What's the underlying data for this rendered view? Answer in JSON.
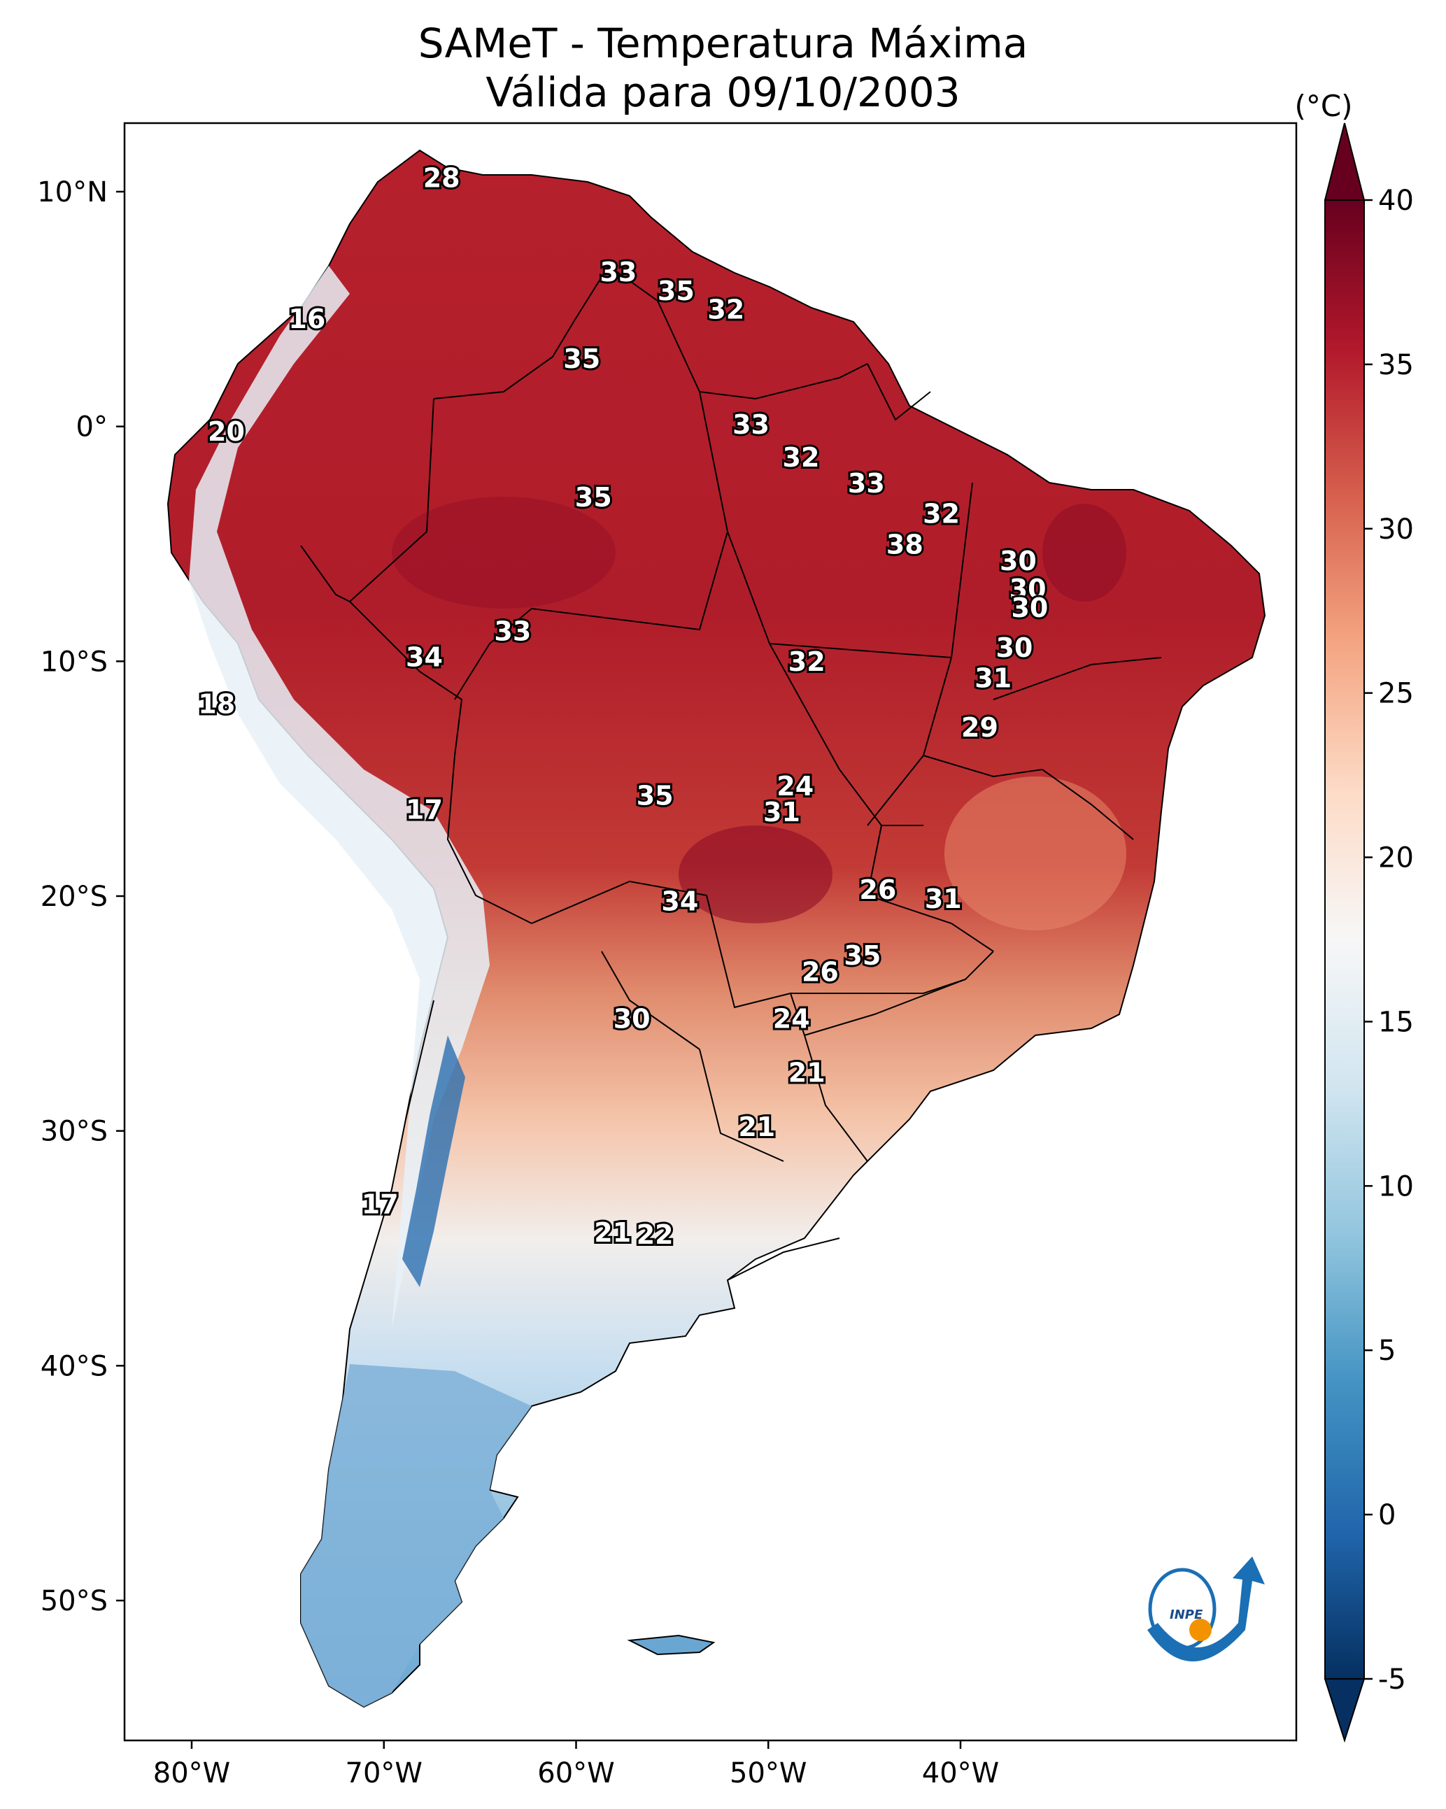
{
  "title": {
    "line1": "SAMeT - Temperatura Máxima",
    "line2": "Válida para 09/10/2003"
  },
  "map": {
    "lon_ticks": [
      "80°W",
      "70°W",
      "60°W",
      "50°W",
      "40°W"
    ],
    "lat_ticks": [
      "10°N",
      "0°",
      "10°S",
      "20°S",
      "30°S",
      "40°S",
      "50°S"
    ],
    "labels": [
      {
        "lon": -67.0,
        "lat": 10.5,
        "text": "28"
      },
      {
        "lon": -74.0,
        "lat": 4.5,
        "text": "16"
      },
      {
        "lon": -57.8,
        "lat": 6.5,
        "text": "33"
      },
      {
        "lon": -54.8,
        "lat": 5.7,
        "text": "35"
      },
      {
        "lon": -52.2,
        "lat": 4.9,
        "text": "32"
      },
      {
        "lon": -59.7,
        "lat": 2.8,
        "text": "35"
      },
      {
        "lon": -78.2,
        "lat": -0.3,
        "text": "20"
      },
      {
        "lon": -50.9,
        "lat": 0.0,
        "text": "33"
      },
      {
        "lon": -48.3,
        "lat": -1.4,
        "text": "32"
      },
      {
        "lon": -44.9,
        "lat": -2.5,
        "text": "33"
      },
      {
        "lon": -59.1,
        "lat": -3.1,
        "text": "35"
      },
      {
        "lon": -41.0,
        "lat": -3.8,
        "text": "32"
      },
      {
        "lon": -42.9,
        "lat": -5.1,
        "text": "38"
      },
      {
        "lon": -37.0,
        "lat": -5.8,
        "text": "30"
      },
      {
        "lon": -36.5,
        "lat": -7.0,
        "text": "30"
      },
      {
        "lon": -36.4,
        "lat": -7.8,
        "text": "30"
      },
      {
        "lon": -63.3,
        "lat": -8.8,
        "text": "33"
      },
      {
        "lon": -67.9,
        "lat": -9.9,
        "text": "34"
      },
      {
        "lon": -48.0,
        "lat": -10.1,
        "text": "32"
      },
      {
        "lon": -37.2,
        "lat": -9.5,
        "text": "30"
      },
      {
        "lon": -38.3,
        "lat": -10.8,
        "text": "31"
      },
      {
        "lon": -78.7,
        "lat": -11.9,
        "text": "18"
      },
      {
        "lon": -39.0,
        "lat": -12.9,
        "text": "29"
      },
      {
        "lon": -48.6,
        "lat": -15.4,
        "text": "24"
      },
      {
        "lon": -67.9,
        "lat": -16.4,
        "text": "17"
      },
      {
        "lon": -55.9,
        "lat": -15.8,
        "text": "35"
      },
      {
        "lon": -49.3,
        "lat": -16.5,
        "text": "31"
      },
      {
        "lon": -44.3,
        "lat": -19.8,
        "text": "26"
      },
      {
        "lon": -40.9,
        "lat": -20.2,
        "text": "31"
      },
      {
        "lon": -54.6,
        "lat": -20.3,
        "text": "34"
      },
      {
        "lon": -45.1,
        "lat": -22.6,
        "text": "35"
      },
      {
        "lon": -47.3,
        "lat": -23.3,
        "text": "26"
      },
      {
        "lon": -57.1,
        "lat": -25.3,
        "text": "30"
      },
      {
        "lon": -48.8,
        "lat": -25.3,
        "text": "24"
      },
      {
        "lon": -48.0,
        "lat": -27.6,
        "text": "21"
      },
      {
        "lon": -50.6,
        "lat": -29.9,
        "text": "21"
      },
      {
        "lon": -70.2,
        "lat": -33.2,
        "text": "17"
      },
      {
        "lon": -58.1,
        "lat": -34.4,
        "text": "21"
      },
      {
        "lon": -55.9,
        "lat": -34.5,
        "text": "22"
      }
    ]
  },
  "colorbar": {
    "unit": "(°C)",
    "min": -5,
    "max": 40,
    "ticks": [
      "40",
      "35",
      "30",
      "25",
      "20",
      "15",
      "10",
      "5",
      "0",
      "-5"
    ],
    "colors": [
      "#053061",
      "#2166ac",
      "#4393c3",
      "#92c5de",
      "#d1e5f0",
      "#f7f7f7",
      "#fddbc7",
      "#f4a582",
      "#d6604d",
      "#b2182b",
      "#67001f"
    ]
  },
  "logo": {
    "text": "INPE",
    "colors": [
      "#1a6fb5",
      "#f39200"
    ]
  }
}
